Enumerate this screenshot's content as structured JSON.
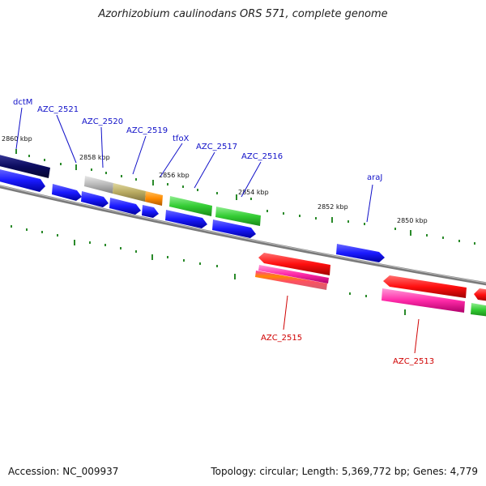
{
  "title": "Azorhizobium caulinodans ORS 571, complete genome",
  "accession": "Accession: NC_009937",
  "summary": "Topology: circular; Length: 5,369,772 bp; Genes: 4,779",
  "ticks": [
    "2860 kbp",
    "2858 kbp",
    "2856 kbp",
    "2854 kbp",
    "2852 kbp",
    "2850 kbp"
  ],
  "labels_top": [
    "dctM",
    "AZC_2521",
    "AZC_2520",
    "AZC_2519",
    "tfoX",
    "AZC_2517",
    "AZC_2516",
    "araJ"
  ],
  "labels_bottom": [
    "AZC_2515",
    "AZC_2513"
  ],
  "colors": {
    "forward_cds": "#1a1aff",
    "reverse_cds": "#ff1010",
    "rna": "#ff2aa8",
    "gene_green": "#33cc33",
    "backbone": "#777777",
    "tick": "#2a8a2a"
  }
}
